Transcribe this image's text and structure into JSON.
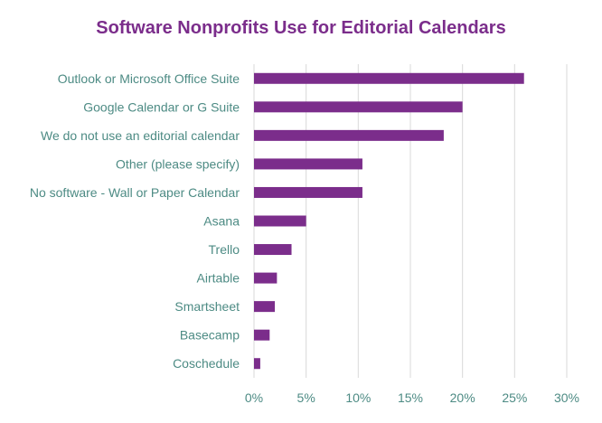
{
  "chart_data": {
    "type": "bar",
    "orientation": "horizontal",
    "title": "Software Nonprofits Use for Editorial Calendars",
    "categories": [
      "Outlook or Microsoft Office Suite",
      "Google Calendar or G Suite",
      "We do not use an editorial calendar",
      "Other (please specify)",
      "No software - Wall or Paper Calendar",
      "Asana",
      "Trello",
      "Airtable",
      "Smartsheet",
      "Basecamp",
      "Coschedule"
    ],
    "values": [
      25.9,
      20.0,
      18.2,
      10.4,
      10.4,
      5.0,
      3.6,
      2.2,
      2.0,
      1.5,
      0.6
    ],
    "xlim": [
      0,
      30
    ],
    "xticks": [
      0,
      5,
      10,
      15,
      20,
      25,
      30
    ],
    "xtick_labels": [
      "0%",
      "5%",
      "10%",
      "15%",
      "20%",
      "25%",
      "30%"
    ],
    "xlabel": "",
    "ylabel": "",
    "grid": "vertical",
    "legend": "none",
    "bar_color": "#7b2d8b",
    "grid_color": "#d9d9d9",
    "label_color": "#4d8b84",
    "title_color": "#7b2d8b"
  }
}
